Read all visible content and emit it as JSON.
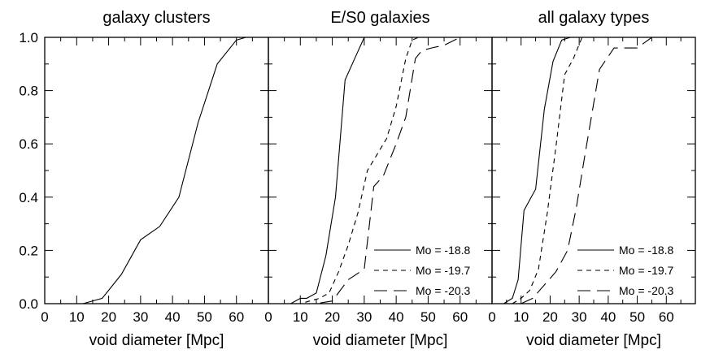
{
  "chart_data": [
    {
      "type": "line",
      "title": "galaxy clusters",
      "xlabel": "void diameter [Mpc]",
      "ylabel": "",
      "xlim": [
        0,
        70
      ],
      "ylim": [
        0,
        1.0
      ],
      "xticks": [
        "0",
        "10",
        "20",
        "30",
        "40",
        "50",
        "60"
      ],
      "yticks": [
        "0.0",
        "0.2",
        "0.4",
        "0.6",
        "0.8",
        "1.0"
      ],
      "grid": false,
      "legend": null,
      "series": [
        {
          "dash": "solid",
          "x": [
            12,
            18,
            24,
            30,
            36,
            42,
            48,
            54,
            60,
            63,
            66
          ],
          "y": [
            0.0,
            0.02,
            0.11,
            0.24,
            0.29,
            0.4,
            0.68,
            0.9,
            0.99,
            1.0,
            1.0
          ]
        }
      ]
    },
    {
      "type": "line",
      "title": "E/S0 galaxies",
      "xlabel": "void diameter [Mpc]",
      "ylabel": "",
      "xlim": [
        0,
        70
      ],
      "ylim": [
        0,
        1.0
      ],
      "xticks": [
        "0",
        "10",
        "20",
        "30",
        "40",
        "50",
        "60"
      ],
      "yticks": [],
      "grid": false,
      "legend": "bottom-right",
      "series": [
        {
          "name": "Mo = -18.8",
          "dash": "solid",
          "x": [
            7,
            10,
            12,
            15,
            18,
            21,
            24,
            27,
            30
          ],
          "y": [
            0.0,
            0.02,
            0.02,
            0.04,
            0.18,
            0.4,
            0.84,
            0.92,
            1.0
          ]
        },
        {
          "name": "Mo = -19.7",
          "dash": "dash",
          "x": [
            6,
            10,
            13,
            16,
            19,
            22,
            25,
            28,
            31,
            34,
            37,
            40,
            43,
            45,
            47,
            50,
            55
          ],
          "y": [
            0.0,
            0.0,
            0.01,
            0.02,
            0.04,
            0.12,
            0.22,
            0.34,
            0.5,
            0.56,
            0.62,
            0.74,
            0.92,
            0.99,
            1.0,
            1.0,
            1.0
          ]
        },
        {
          "name": "Mo = -20.3",
          "dash": "longdash",
          "x": [
            4,
            10,
            15,
            20,
            25,
            30,
            33,
            36,
            40,
            43,
            46,
            48,
            51,
            55,
            60,
            66
          ],
          "y": [
            0.0,
            0.0,
            0.0,
            0.01,
            0.09,
            0.13,
            0.44,
            0.48,
            0.6,
            0.7,
            0.92,
            0.95,
            0.96,
            0.97,
            1.0,
            1.0
          ]
        }
      ]
    },
    {
      "type": "line",
      "title": "all galaxy types",
      "xlabel": "void diameter [Mpc]",
      "ylabel": "",
      "xlim": [
        0,
        70
      ],
      "ylim": [
        0,
        1.0
      ],
      "xticks": [
        "0",
        "10",
        "20",
        "30",
        "40",
        "50",
        "60"
      ],
      "yticks": [],
      "grid": false,
      "legend": "bottom-right",
      "series": [
        {
          "name": "Mo = -18.8",
          "dash": "solid",
          "x": [
            4,
            7,
            9,
            11,
            14,
            15,
            18,
            21,
            24,
            27
          ],
          "y": [
            0.0,
            0.02,
            0.09,
            0.35,
            0.41,
            0.43,
            0.73,
            0.91,
            0.99,
            1.0
          ]
        },
        {
          "name": "Mo = -19.7",
          "dash": "dash",
          "x": [
            7,
            10,
            13,
            16,
            19,
            22,
            25,
            28,
            31,
            34
          ],
          "y": [
            0.0,
            0.02,
            0.05,
            0.13,
            0.34,
            0.59,
            0.86,
            0.92,
            1.0,
            1.0
          ]
        },
        {
          "name": "Mo = -20.3",
          "dash": "longdash",
          "x": [
            10,
            14,
            18,
            22,
            26,
            29,
            32,
            37,
            42,
            46,
            50,
            55,
            60,
            66
          ],
          "y": [
            0.0,
            0.02,
            0.07,
            0.12,
            0.2,
            0.36,
            0.56,
            0.88,
            0.96,
            0.96,
            0.96,
            1.0,
            1.0,
            1.0
          ]
        }
      ]
    }
  ]
}
